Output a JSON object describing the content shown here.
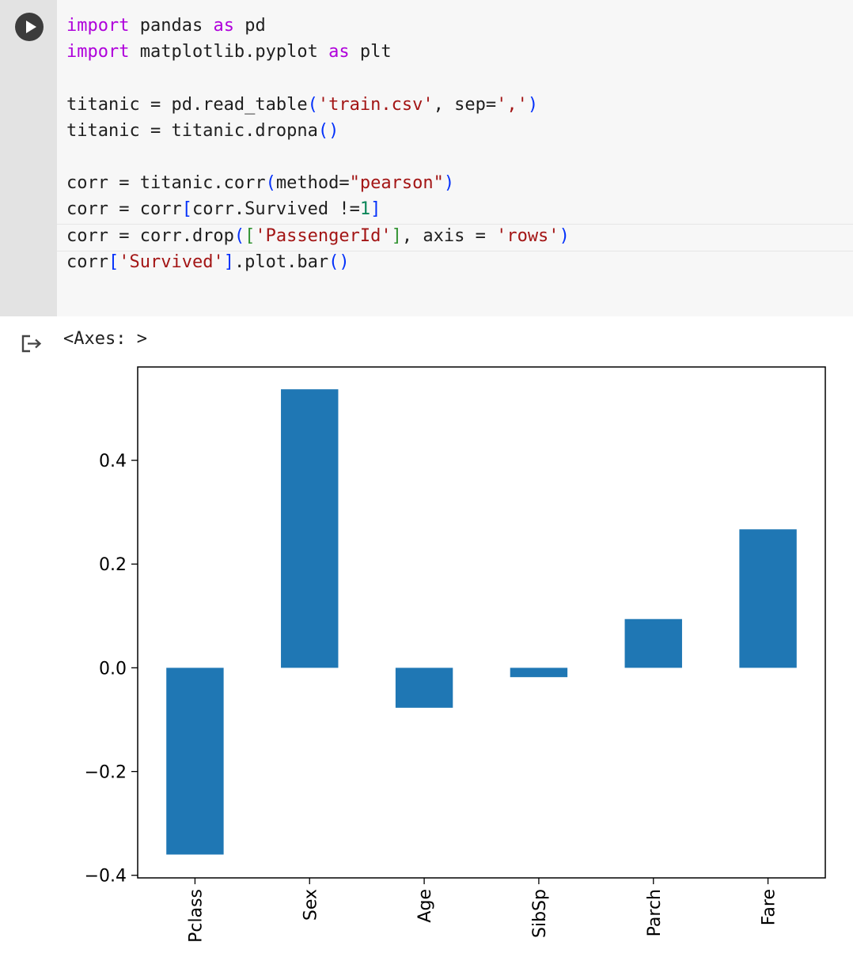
{
  "cell": {
    "run_button": "run-cell",
    "code_lines": [
      [
        {
          "t": "import",
          "c": "kw"
        },
        {
          "t": " pandas "
        },
        {
          "t": "as",
          "c": "kw"
        },
        {
          "t": " pd"
        }
      ],
      [
        {
          "t": "import",
          "c": "kw"
        },
        {
          "t": " matplotlib.pyplot "
        },
        {
          "t": "as",
          "c": "kw"
        },
        {
          "t": " plt"
        }
      ],
      [],
      [
        {
          "t": "titanic = pd.read_table"
        },
        {
          "t": "(",
          "c": "brk"
        },
        {
          "t": "'train.csv'",
          "c": "str"
        },
        {
          "t": ", sep="
        },
        {
          "t": "','",
          "c": "str"
        },
        {
          "t": ")",
          "c": "brk"
        }
      ],
      [
        {
          "t": "titanic = titanic.dropna"
        },
        {
          "t": "()",
          "c": "brk"
        }
      ],
      [],
      [
        {
          "t": "corr = titanic.corr"
        },
        {
          "t": "(",
          "c": "brk"
        },
        {
          "t": "method="
        },
        {
          "t": "\"pearson\"",
          "c": "str"
        },
        {
          "t": ")",
          "c": "brk"
        }
      ],
      [
        {
          "t": "corr = corr"
        },
        {
          "t": "[",
          "c": "brk"
        },
        {
          "t": "corr.Survived !="
        },
        {
          "t": "1",
          "c": "num"
        },
        {
          "t": "]",
          "c": "brk"
        }
      ],
      [
        {
          "t": "corr = corr.drop"
        },
        {
          "t": "(",
          "c": "brk"
        },
        {
          "t": "[",
          "c": "brk2"
        },
        {
          "t": "'PassengerId'",
          "c": "str"
        },
        {
          "t": "]",
          "c": "brk2"
        },
        {
          "t": ", axis = "
        },
        {
          "t": "'rows'",
          "c": "str"
        },
        {
          "t": ")",
          "c": "brk"
        }
      ],
      [
        {
          "t": "corr"
        },
        {
          "t": "[",
          "c": "brk"
        },
        {
          "t": "'Survived'",
          "c": "str"
        },
        {
          "t": "]",
          "c": "brk"
        },
        {
          "t": ".plot.bar"
        },
        {
          "t": "()",
          "c": "brk"
        }
      ]
    ]
  },
  "output": {
    "icon": "output-arrow-icon",
    "text": "<Axes: >"
  },
  "colors": {
    "bar": "#1f77b4",
    "keyword": "#af00db",
    "string": "#a31515"
  },
  "chart_data": {
    "type": "bar",
    "categories": [
      "Pclass",
      "Sex",
      "Age",
      "SibSp",
      "Parch",
      "Fare"
    ],
    "values": [
      -0.36,
      0.537,
      -0.077,
      -0.018,
      0.094,
      0.267
    ],
    "title": "",
    "xlabel": "",
    "ylabel": "",
    "ylim": [
      -0.405,
      0.58
    ],
    "yticks": [
      -0.4,
      -0.2,
      0.0,
      0.2,
      0.4
    ],
    "ytick_labels": [
      "−0.4",
      "−0.2",
      "0.0",
      "0.2",
      "0.4"
    ],
    "grid": false,
    "legend": "none"
  }
}
